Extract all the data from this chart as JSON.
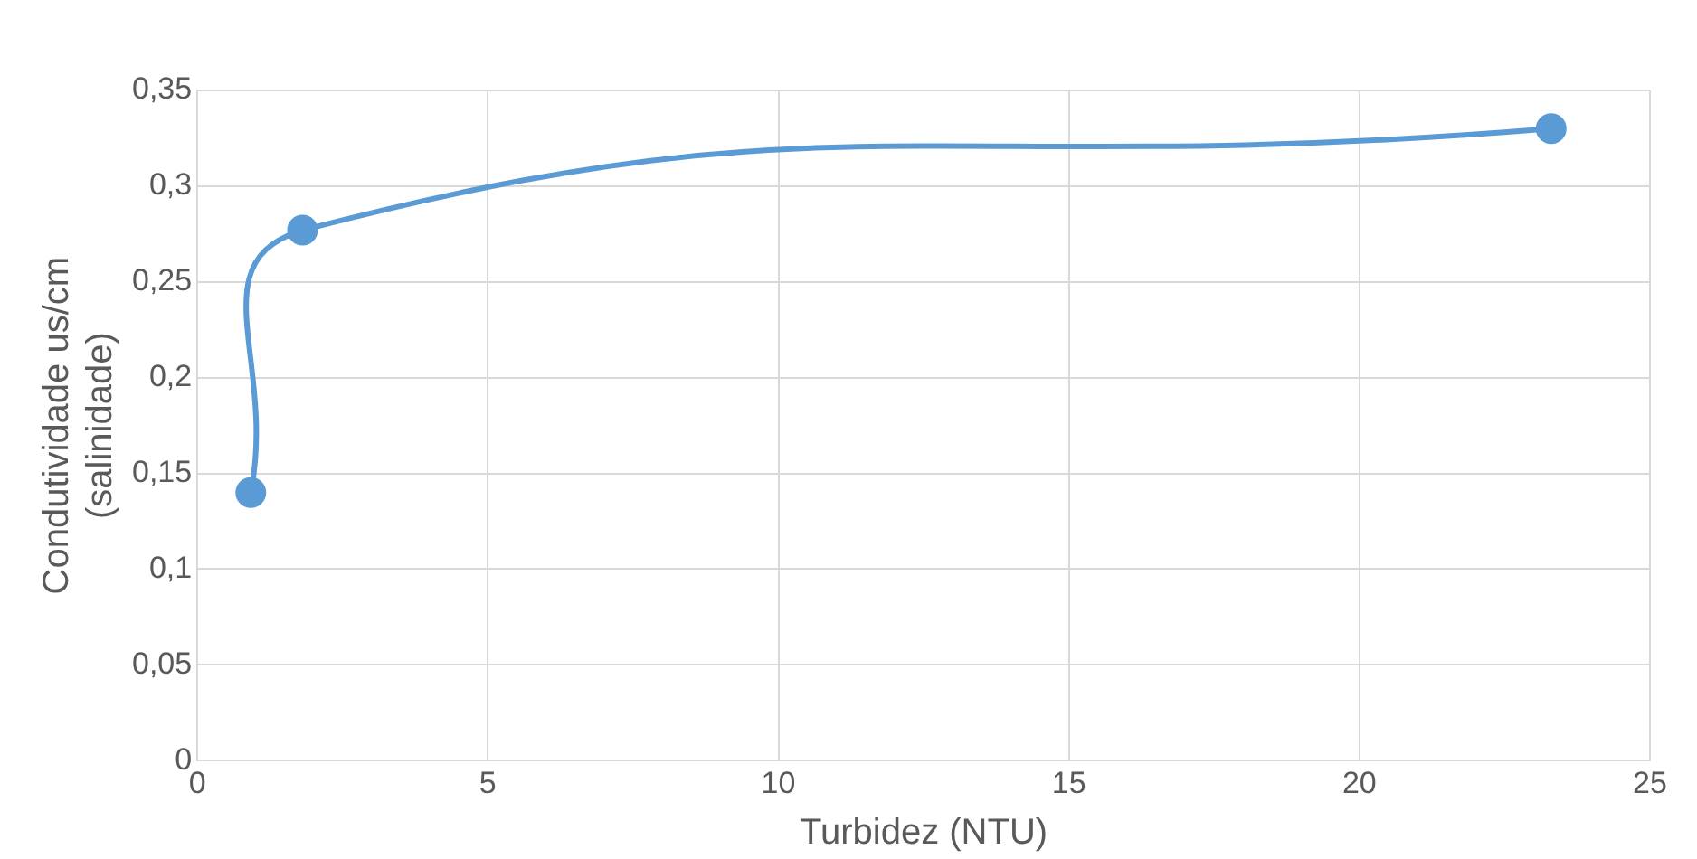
{
  "chart_data": {
    "type": "line",
    "xlabel": "Turbidez (NTU)",
    "ylabel": "Condutividade us/cm\n(salinidade)",
    "x": [
      0.92,
      1.81,
      23.3
    ],
    "series": [
      {
        "color": "#5b9bd5",
        "values": [
          0.14,
          0.277,
          0.33
        ]
      }
    ],
    "xlim": [
      0,
      25
    ],
    "xticks": [
      0,
      5,
      10,
      15,
      20,
      25
    ],
    "ylim": [
      0,
      0.35
    ],
    "yticks": [
      0,
      {
        "value": 0.05,
        "label": "0,05"
      },
      {
        "value": 0.1,
        "label": "0,1"
      },
      {
        "value": 0.15,
        "label": "0,15"
      },
      {
        "value": 0.2,
        "label": "0,2"
      },
      {
        "value": 0.25,
        "label": "0,25"
      },
      {
        "value": 0.3,
        "label": "0,3"
      },
      {
        "value": 0.35,
        "label": "0,35"
      }
    ],
    "grid": true,
    "legend": false,
    "marker": "circle",
    "line_style": "solid"
  }
}
